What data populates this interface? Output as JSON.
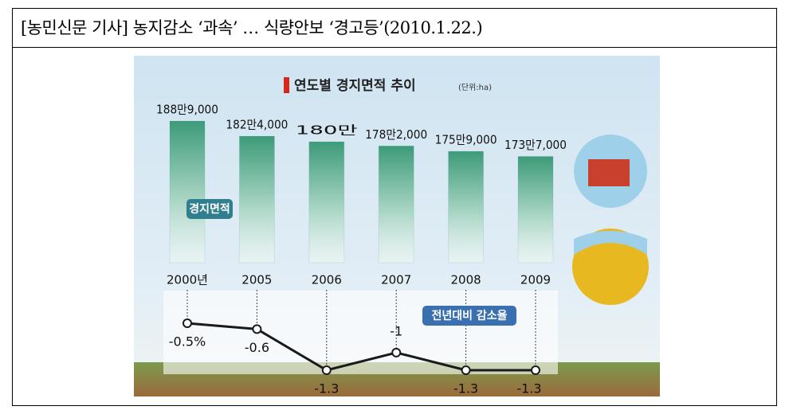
{
  "header": {
    "title": "[농민신문 기사] 농지감소 ‘과속’ … 식량안보 ‘경고등’(2010.1.22.)"
  },
  "chart_data": [
    {
      "type": "bar",
      "title": "연도별 경지면적 추이",
      "unit": "(단위:ha)",
      "categories": [
        "2000년",
        "2005",
        "2006",
        "2007",
        "2008",
        "2009"
      ],
      "series": [
        {
          "name": "경지면적",
          "color": "#3d9b7a",
          "values": [
            1889000,
            1824000,
            1800000,
            1782000,
            1759000,
            1737000
          ],
          "value_labels": [
            "188만9,000",
            "182만4,000",
            "180만",
            "178만2,000",
            "175만9,000",
            "173만7,000"
          ]
        }
      ]
    },
    {
      "type": "line",
      "series": [
        {
          "name": "전년대비 감소율",
          "color": "#1a1a1a",
          "values": [
            -0.5,
            -0.6,
            -1.3,
            -1,
            -1.3,
            -1.3
          ],
          "value_labels": [
            "-0.5%",
            "-0.6",
            "-1.3",
            "-1",
            "-1.3",
            "-1.3"
          ]
        }
      ]
    }
  ]
}
